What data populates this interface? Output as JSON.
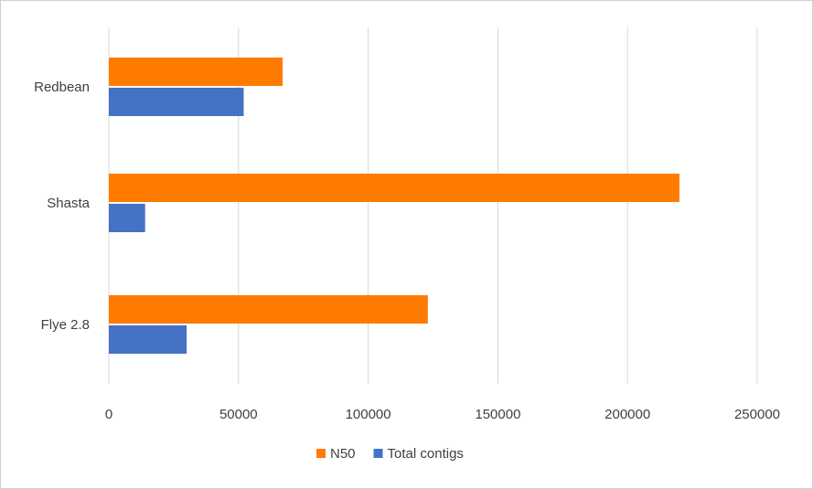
{
  "chart_data": {
    "type": "bar",
    "orientation": "horizontal",
    "title": "",
    "xlabel": "",
    "ylabel": "",
    "categories": [
      "Redbean",
      "Shasta",
      "Flye 2.8"
    ],
    "series": [
      {
        "name": "N50",
        "values": [
          67000,
          220000,
          123000
        ],
        "color": "#ff7b00"
      },
      {
        "name": "Total contigs",
        "values": [
          52000,
          14000,
          30000
        ],
        "color": "#4472c4"
      }
    ],
    "xlim": [
      0,
      250000
    ],
    "x_ticks": [
      "0",
      "50000",
      "100000",
      "150000",
      "200000",
      "250000"
    ],
    "grid": "vertical",
    "legend_position": "bottom"
  }
}
